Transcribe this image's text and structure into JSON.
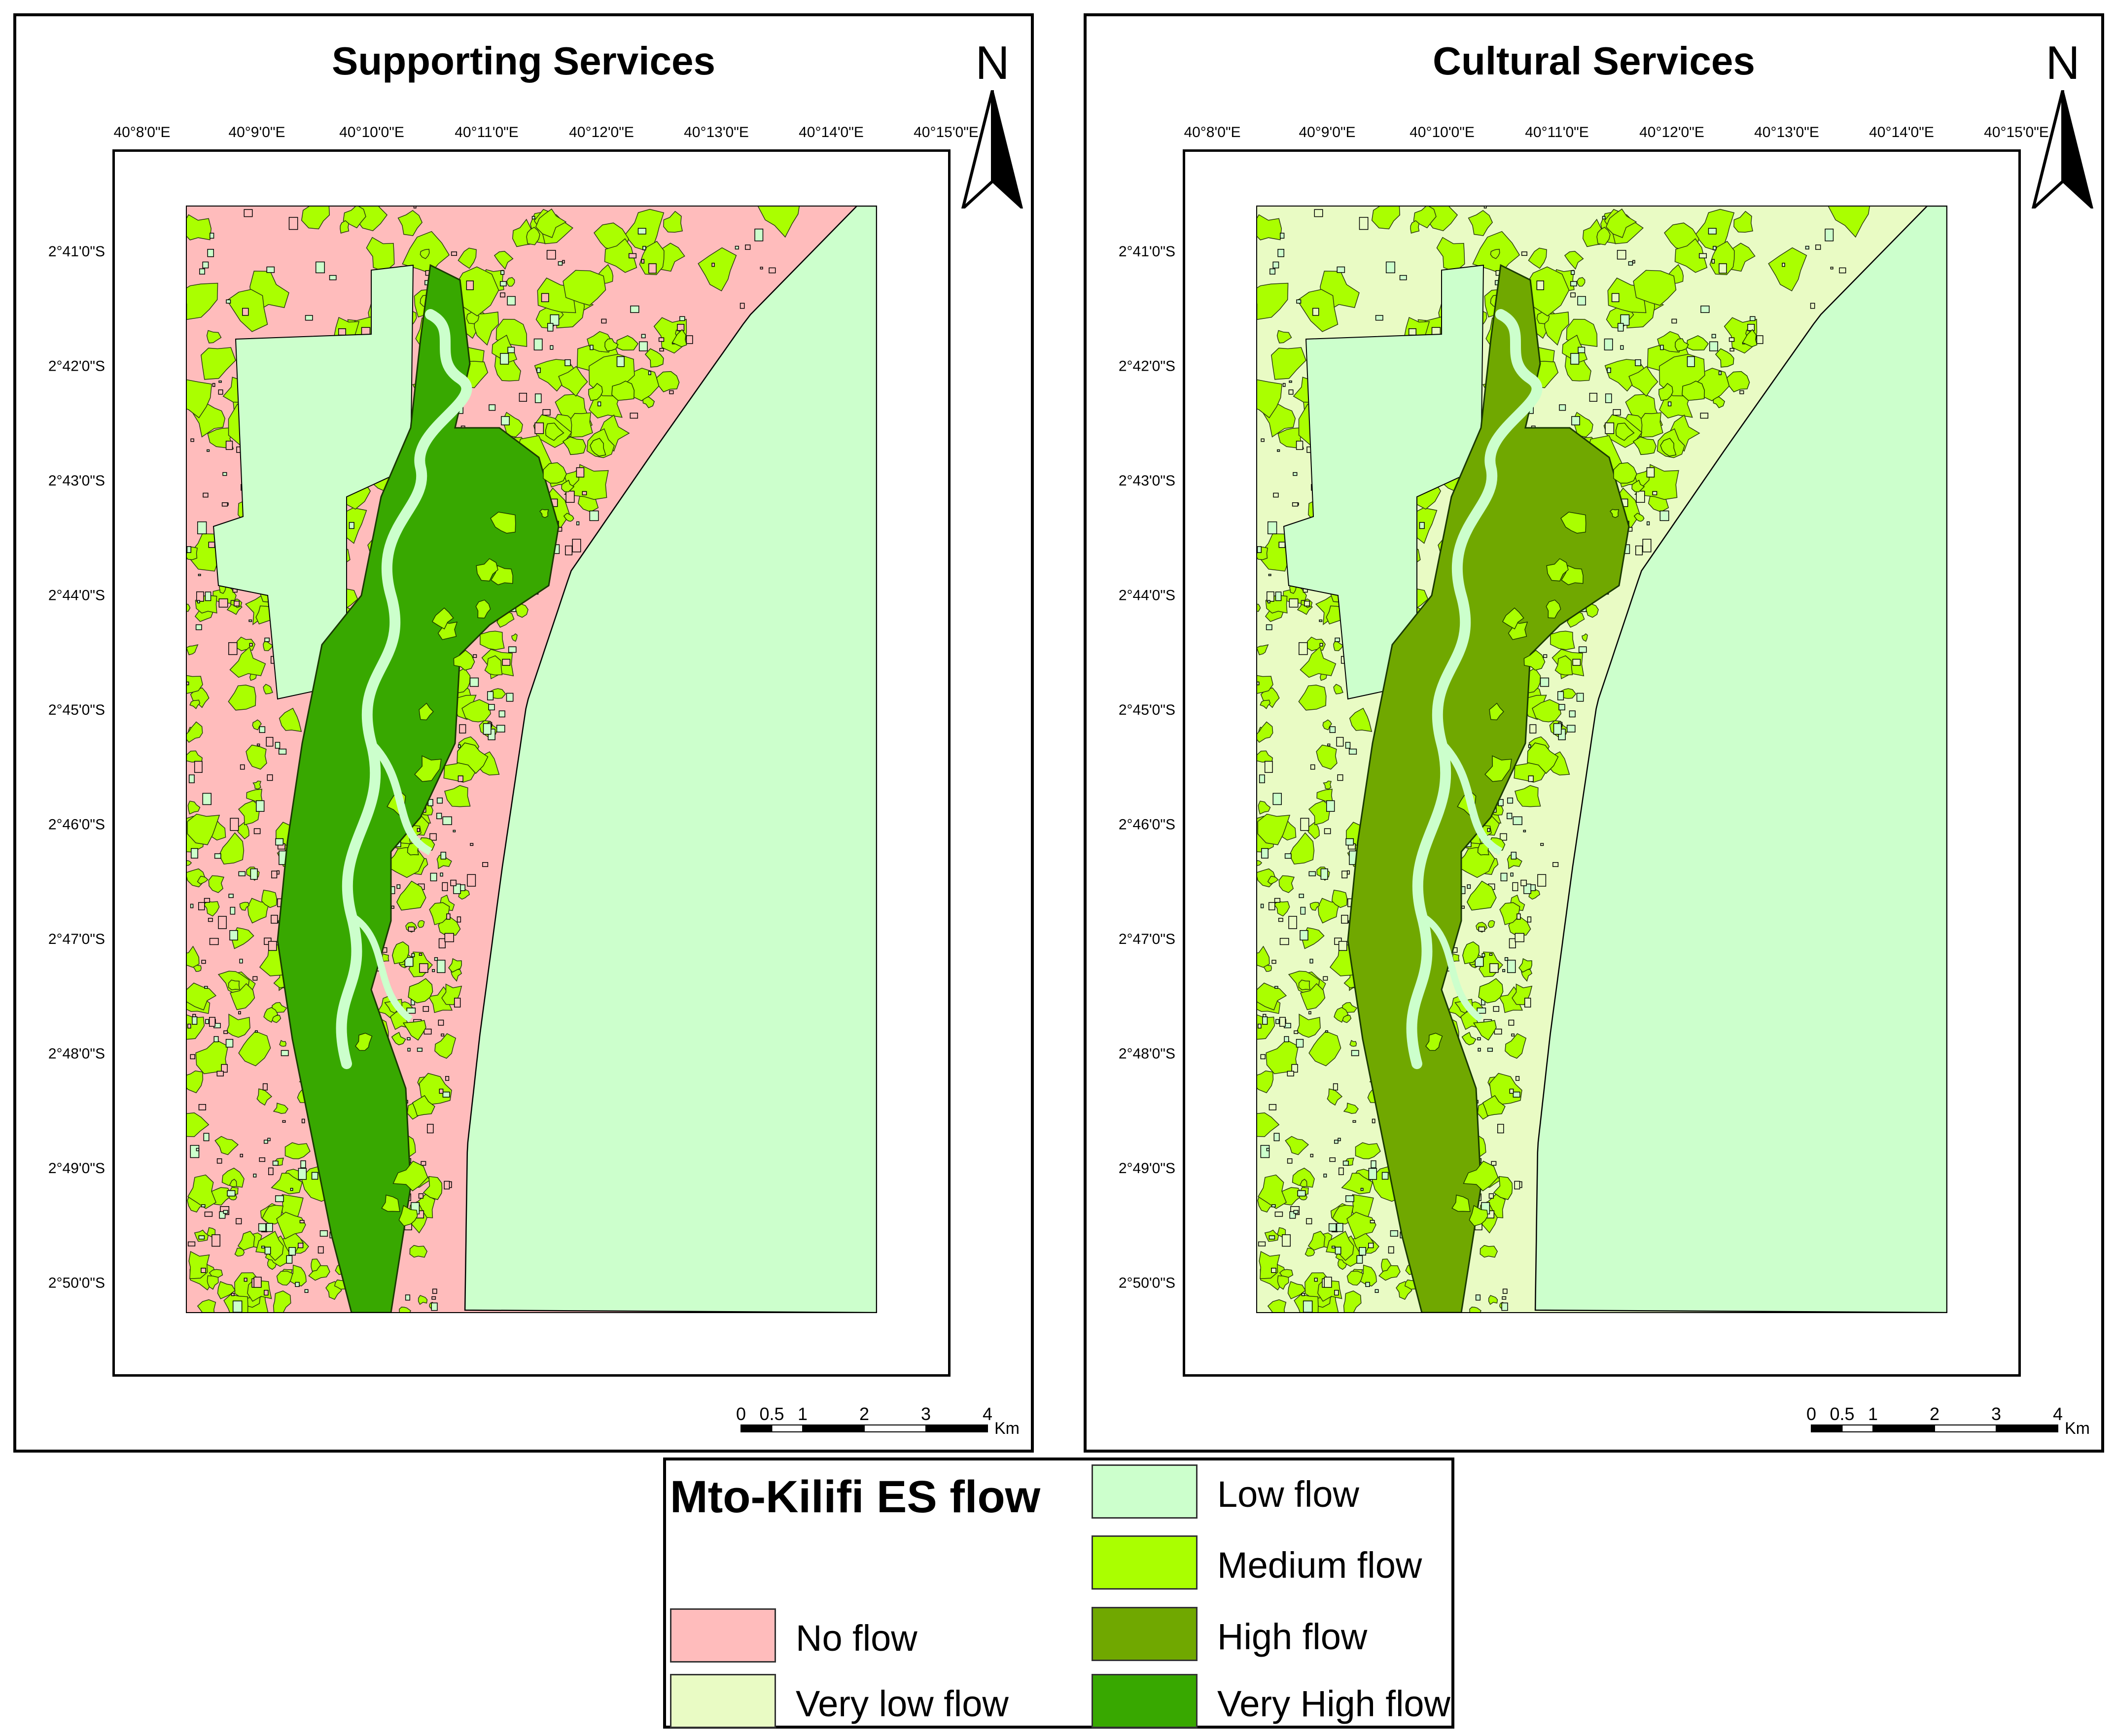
{
  "panels": [
    {
      "id": "supporting",
      "title": "Supporting Services",
      "inland_class": "no_flow",
      "mangrove_class": "very_high_flow"
    },
    {
      "id": "cultural",
      "title": "Cultural Services",
      "inland_class": "very_low_flow",
      "mangrove_class": "high_flow"
    }
  ],
  "north_arrow": {
    "label": "N"
  },
  "grid": {
    "longitudes": [
      "40°8'0\"E",
      "40°9'0\"E",
      "40°10'0\"E",
      "40°11'0\"E",
      "40°12'0\"E",
      "40°13'0\"E",
      "40°14'0\"E",
      "40°15'0\"E"
    ],
    "latitudes": [
      "2°41'0\"S",
      "2°42'0\"S",
      "2°43'0\"S",
      "2°44'0\"S",
      "2°45'0\"S",
      "2°46'0\"S",
      "2°47'0\"S",
      "2°48'0\"S",
      "2°49'0\"S",
      "2°50'0\"S"
    ]
  },
  "scalebar": {
    "ticks": [
      0,
      0.5,
      1,
      2,
      3,
      4
    ],
    "tick_labels": [
      "0",
      "0.5",
      "1",
      "2",
      "3",
      "4"
    ],
    "unit": "Km"
  },
  "legend": {
    "title": "Mto-Kilifi ES flow",
    "items": [
      {
        "key": "no_flow",
        "label": "No flow",
        "color": "#ffbcbc"
      },
      {
        "key": "very_low_flow",
        "label": "Very low flow",
        "color": "#e9fbc4"
      },
      {
        "key": "low_flow",
        "label": "Low flow",
        "color": "#ccffcc"
      },
      {
        "key": "medium_flow",
        "label": "Medium flow",
        "color": "#aaff00"
      },
      {
        "key": "high_flow",
        "label": "High flow",
        "color": "#70a800"
      },
      {
        "key": "very_high_flow",
        "label": "Very High flow",
        "color": "#38a800"
      }
    ]
  }
}
